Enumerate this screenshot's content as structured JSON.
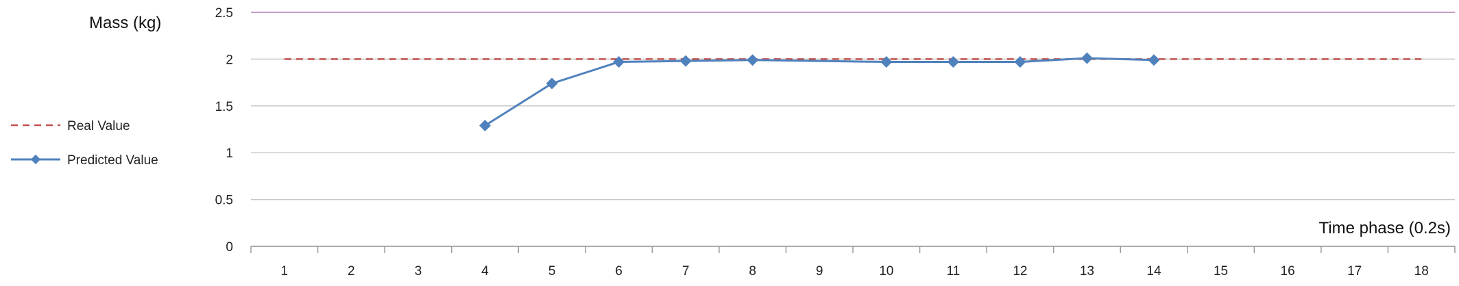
{
  "chart_data": {
    "type": "line",
    "x": [
      1,
      2,
      3,
      4,
      5,
      6,
      7,
      8,
      9,
      10,
      11,
      12,
      13,
      14,
      15,
      16,
      17,
      18
    ],
    "x_tick_labels": [
      "1",
      "2",
      "3",
      "4",
      "5",
      "6",
      "7",
      "8",
      "9",
      "10",
      "11",
      "12",
      "13",
      "14",
      "15",
      "16",
      "17",
      "18"
    ],
    "ylim": [
      0,
      2.5
    ],
    "y_ticks": [
      0,
      0.5,
      1,
      1.5,
      2,
      2.5
    ],
    "y_tick_labels": [
      "0",
      "0.5",
      "1",
      "1.5",
      "2",
      "2.5"
    ],
    "ylabel": "Mass (kg)",
    "xlabel": "Time phase (0.2s)",
    "grid": true,
    "legend_position": "left",
    "series": [
      {
        "name": "Real Value",
        "style": "dashed",
        "color": "#c0504d",
        "points": [
          [
            1,
            2
          ],
          [
            18,
            2
          ]
        ]
      },
      {
        "name": "Predicted Value",
        "style": "solid-diamond",
        "color": "#4f81bd",
        "points": [
          [
            4,
            1.29
          ],
          [
            5,
            1.74
          ],
          [
            6,
            1.97
          ],
          [
            7,
            1.98
          ],
          [
            8,
            1.99
          ],
          [
            10,
            1.97
          ],
          [
            11,
            1.97
          ],
          [
            12,
            1.97
          ],
          [
            13,
            2.01
          ],
          [
            14,
            1.99
          ]
        ]
      }
    ]
  }
}
